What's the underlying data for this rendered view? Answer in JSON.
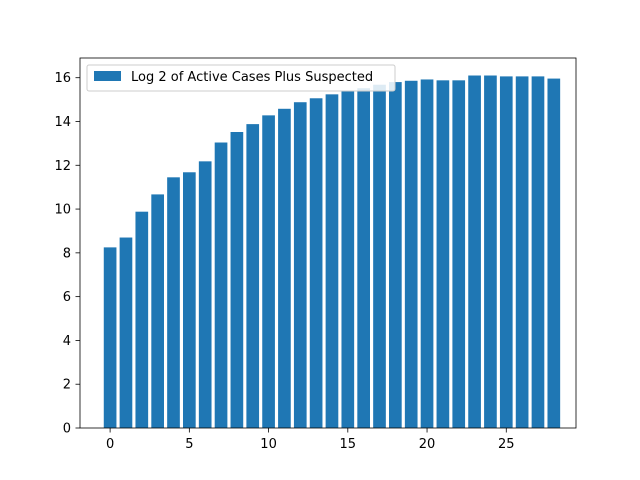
{
  "chart_data": {
    "type": "bar",
    "x": [
      0,
      1,
      2,
      3,
      4,
      5,
      6,
      7,
      8,
      9,
      10,
      11,
      12,
      13,
      14,
      15,
      16,
      17,
      18,
      19,
      20,
      21,
      22,
      23,
      24,
      25,
      26,
      27,
      28
    ],
    "values": [
      8.25,
      8.7,
      9.88,
      10.67,
      11.45,
      11.68,
      12.18,
      13.04,
      13.52,
      13.88,
      14.28,
      14.58,
      14.88,
      15.06,
      15.24,
      15.4,
      15.52,
      15.68,
      15.8,
      15.86,
      15.92,
      15.88,
      15.88,
      16.1,
      16.1,
      16.06,
      16.06,
      16.06,
      15.96
    ],
    "series": [
      {
        "name": "Log 2 of Active Cases Plus Suspected",
        "color": "#1f77b4"
      }
    ],
    "xticks": [
      0,
      5,
      10,
      15,
      20,
      25
    ],
    "yticks": [
      0,
      2,
      4,
      6,
      8,
      10,
      12,
      14,
      16
    ],
    "xlim": [
      -1.9,
      29.4
    ],
    "ylim": [
      0,
      16.9
    ],
    "legend_position": "top-left",
    "grid": false
  }
}
